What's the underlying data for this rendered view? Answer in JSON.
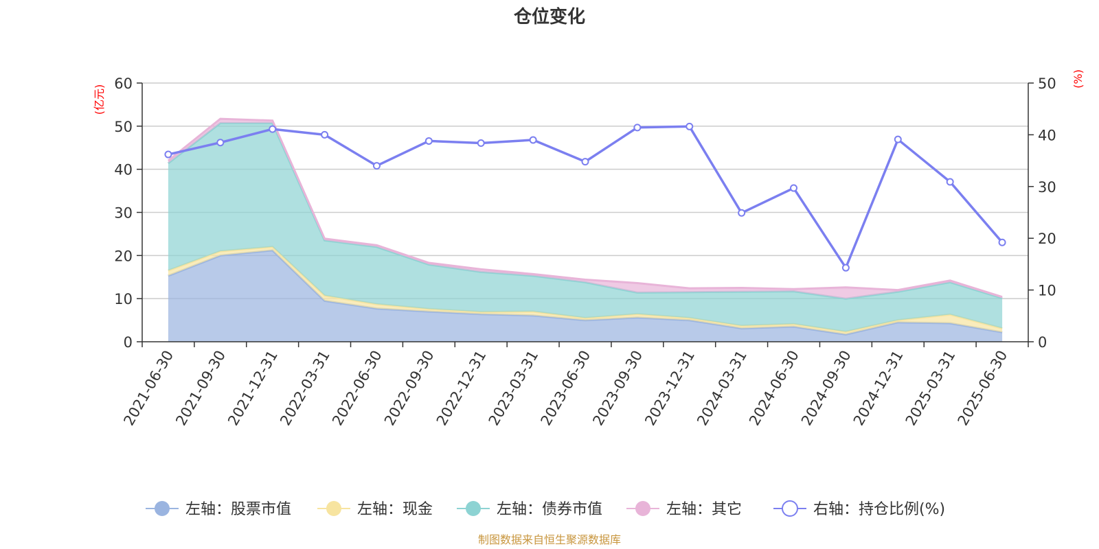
{
  "title": "仓位变化",
  "source": "制图数据来自恒生聚源数据库",
  "chart_data": {
    "type": "area",
    "categories": [
      "2021-06-30",
      "2021-09-30",
      "2021-12-31",
      "2022-03-31",
      "2022-06-30",
      "2022-09-30",
      "2022-12-31",
      "2023-03-31",
      "2023-06-30",
      "2023-09-30",
      "2023-12-31",
      "2024-03-31",
      "2024-06-30",
      "2024-09-30",
      "2024-12-31",
      "2025-03-31",
      "2025-06-30"
    ],
    "left_axis": {
      "unit": "(亿元)",
      "min": 0,
      "max": 60,
      "ticks": [
        0,
        10,
        20,
        30,
        40,
        50,
        60
      ]
    },
    "right_axis": {
      "unit": "(%)",
      "min": 0,
      "max": 50,
      "ticks": [
        0,
        10,
        20,
        30,
        40,
        50
      ]
    },
    "stacked": true,
    "grid": true,
    "legend_position": "bottom",
    "series": [
      {
        "name": "左轴：股票市值",
        "axis": "left",
        "kind": "area",
        "color": "#9ab4e0",
        "values": [
          15.3,
          20.0,
          21.2,
          9.5,
          7.7,
          7.0,
          6.4,
          6.1,
          5.0,
          5.6,
          5.0,
          3.1,
          3.5,
          1.7,
          4.5,
          4.3,
          2.2
        ]
      },
      {
        "name": "左轴：现金",
        "axis": "left",
        "kind": "area",
        "color": "#f7e4a0",
        "values": [
          1.2,
          1.0,
          0.8,
          1.2,
          1.0,
          0.6,
          0.5,
          0.9,
          0.5,
          0.8,
          0.5,
          0.6,
          0.6,
          0.6,
          0.5,
          2.0,
          0.9
        ]
      },
      {
        "name": "左轴：债券市值",
        "axis": "left",
        "kind": "area",
        "color": "#8dd3d3",
        "values": [
          24.9,
          29.7,
          28.7,
          12.8,
          13.3,
          10.3,
          9.3,
          8.3,
          8.3,
          5.0,
          6.0,
          7.9,
          7.6,
          7.7,
          6.6,
          7.5,
          7.0
        ]
      },
      {
        "name": "左轴：其它",
        "axis": "left",
        "kind": "area",
        "color": "#e8b4d8",
        "values": [
          0.6,
          1.0,
          0.6,
          0.4,
          0.4,
          0.4,
          0.6,
          0.4,
          0.6,
          2.2,
          0.9,
          0.9,
          0.5,
          2.6,
          0.4,
          0.4,
          0.3
        ]
      },
      {
        "name": "右轴：持仓比例(%)",
        "axis": "right",
        "kind": "line",
        "color": "#7b7ff0",
        "values": [
          36.2,
          38.5,
          41.1,
          40.0,
          34.0,
          38.8,
          38.4,
          39.0,
          34.8,
          41.4,
          41.6,
          24.9,
          29.7,
          14.3,
          39.1,
          30.9,
          19.2
        ]
      }
    ]
  }
}
